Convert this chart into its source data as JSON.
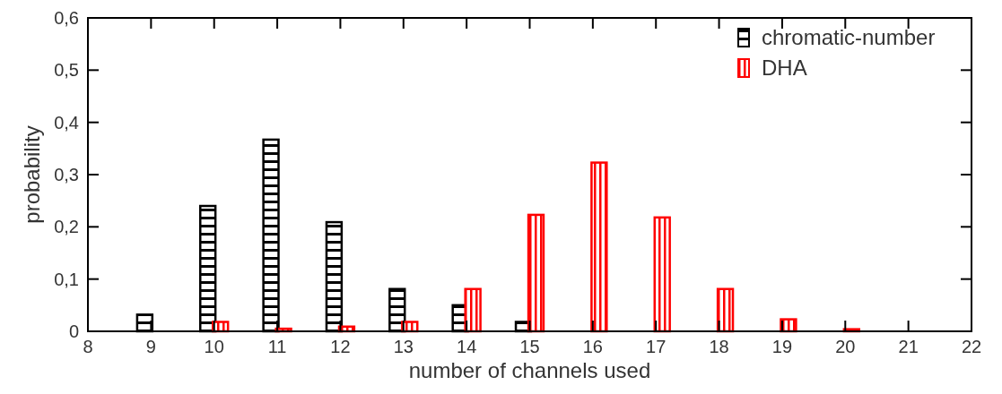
{
  "chart_data": {
    "type": "bar",
    "xlabel": "number of channels used",
    "ylabel": "probability",
    "x": [
      9,
      10,
      11,
      12,
      13,
      14,
      15,
      16,
      17,
      18,
      19,
      20
    ],
    "series": [
      {
        "name": "chromatic-number",
        "color": "#000000",
        "values": [
          0.032,
          0.24,
          0.367,
          0.209,
          0.081,
          0.05,
          0.018,
          null,
          null,
          null,
          null,
          null
        ]
      },
      {
        "name": "DHA",
        "color": "#ff0000",
        "values": [
          null,
          0.018,
          0.005,
          0.009,
          0.018,
          0.081,
          0.223,
          0.323,
          0.218,
          0.081,
          0.023,
          0.004
        ]
      }
    ],
    "xlim": [
      8,
      22
    ],
    "xticks": [
      8,
      9,
      10,
      11,
      12,
      13,
      14,
      15,
      16,
      17,
      18,
      19,
      20,
      21,
      22
    ],
    "ylim": [
      0,
      0.6
    ],
    "yticks": [
      0,
      {
        "value": 0.1,
        "label": "0,1"
      },
      {
        "value": 0.2,
        "label": "0,2"
      },
      {
        "value": 0.3,
        "label": "0,3"
      },
      {
        "value": 0.4,
        "label": "0,4"
      },
      {
        "value": 0.5,
        "label": "0,5"
      },
      {
        "value": 0.6,
        "label": "0,6"
      }
    ],
    "grid": false,
    "legend": "top right"
  }
}
